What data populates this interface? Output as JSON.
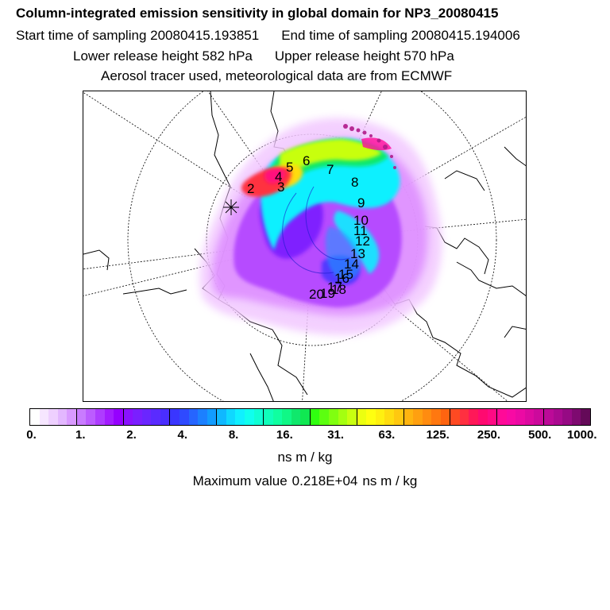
{
  "title": {
    "line1": "Column-integrated emission sensitivity in global domain for NP3_20080415",
    "start_label": "Start time of sampling 20080415.193851",
    "end_label": "End time of sampling 20080415.194006",
    "lower_label": "Lower release height  582 hPa",
    "upper_label": "Upper release height  570 hPa",
    "line4": "Aerosol tracer used, meteorological data are from ECMWF"
  },
  "map": {
    "projection": "north-polar-stereographic",
    "trajectory_labels": [
      "2",
      "3",
      "4",
      "5",
      "6",
      "7",
      "8",
      "9",
      "10",
      "11",
      "12",
      "13",
      "14",
      "15",
      "16",
      "17",
      "18",
      "19",
      "20"
    ]
  },
  "colorbar": {
    "tick_labels": [
      "0.",
      "1.",
      "2.",
      "4.",
      "8.",
      "16.",
      "31.",
      "63.",
      "125.",
      "250.",
      "500.",
      "1000."
    ],
    "unit": "ns m / kg",
    "colors": [
      "#ffffff",
      "#f6e6ff",
      "#eed0ff",
      "#e3b7ff",
      "#d99aff",
      "#c97bff",
      "#bc5cff",
      "#ae3cff",
      "#a31cff",
      "#9600ff",
      "#8a12ff",
      "#7a1fff",
      "#6a26ff",
      "#5a2bff",
      "#4a2eff",
      "#3a36ff",
      "#2f4aff",
      "#2665ff",
      "#1c80ff",
      "#129cff",
      "#10b8ff",
      "#10d8ff",
      "#10f0ff",
      "#10ffee",
      "#10ffd4",
      "#10ffba",
      "#10ffa0",
      "#10f886",
      "#10e86c",
      "#10e852",
      "#30ff10",
      "#5cff10",
      "#80ff10",
      "#a4ff10",
      "#c8ff10",
      "#ecff10",
      "#ffff10",
      "#fff010",
      "#ffdc10",
      "#ffc810",
      "#ffb410",
      "#ffa010",
      "#ff8c10",
      "#ff7810",
      "#ff6410",
      "#ff4a22",
      "#ff3040",
      "#ff1858",
      "#ff0a70",
      "#ff0a84",
      "#ff0a98",
      "#f80aa4",
      "#ec0aa4",
      "#dc0aa0",
      "#cc0a9c",
      "#bc0a98",
      "#aa0a90",
      "#960a84",
      "#7e0a70",
      "#640a58"
    ]
  },
  "maximum": {
    "label": "Maximum value",
    "value": "0.218E+04",
    "unit": "ns m / kg"
  }
}
